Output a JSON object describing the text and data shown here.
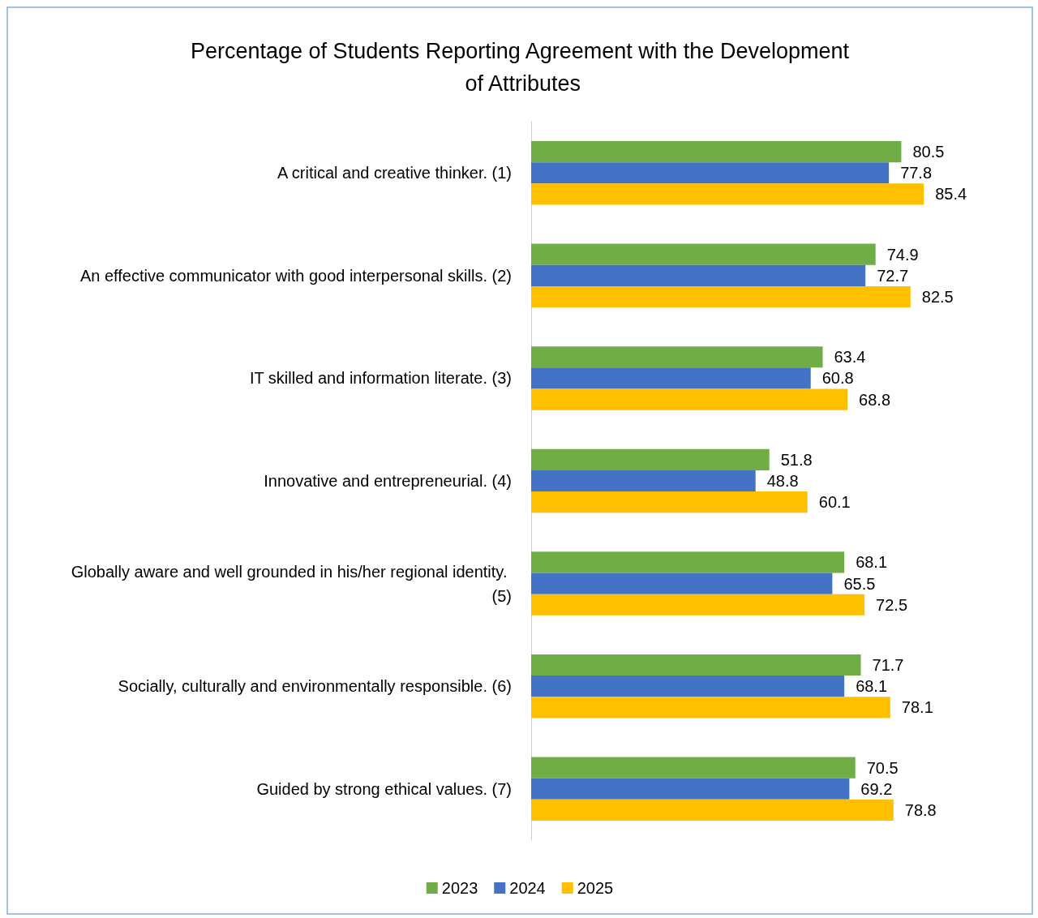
{
  "chart_data": {
    "type": "bar",
    "orientation": "horizontal",
    "title": "Percentage of Students Reporting Agreement with the Development of Attributes",
    "categories": [
      "A critical and creative thinker. (1)",
      "An effective communicator with good interpersonal skills. (2)",
      "IT skilled and information literate. (3)",
      "Innovative and entrepreneurial. (4)",
      "Globally aware and well grounded in his/her regional identity. (5)",
      "Socially, culturally and environmentally responsible. (6)",
      "Guided by strong ethical values. (7)"
    ],
    "series": [
      {
        "name": "2023",
        "color": "#70ad47",
        "values": [
          80.5,
          74.9,
          63.4,
          51.8,
          68.1,
          71.7,
          70.5
        ]
      },
      {
        "name": "2024",
        "color": "#4472c4",
        "values": [
          77.8,
          72.7,
          60.8,
          48.8,
          65.5,
          68.1,
          69.2
        ]
      },
      {
        "name": "2025",
        "color": "#ffc000",
        "values": [
          85.4,
          82.5,
          68.8,
          60.1,
          72.5,
          78.1,
          78.8
        ]
      }
    ],
    "data_labels": true,
    "grid": false,
    "legend": "bottom"
  }
}
